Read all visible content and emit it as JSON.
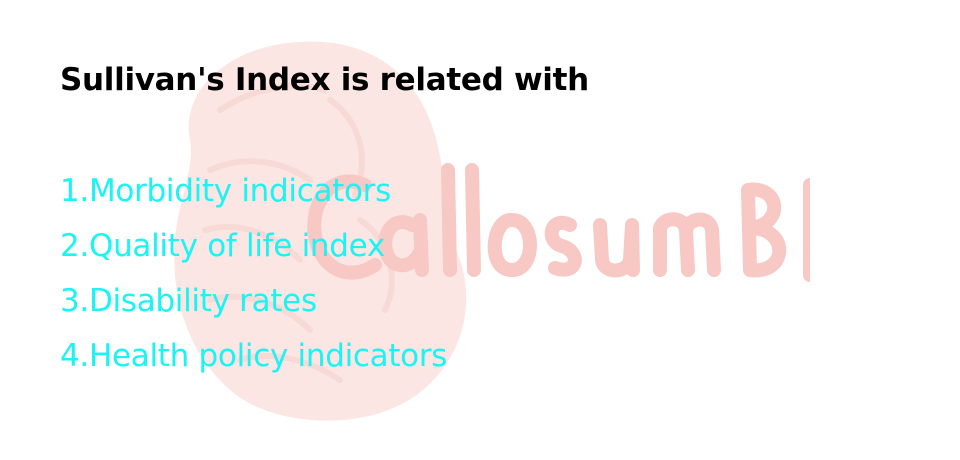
{
  "question": {
    "text": "Sullivan's Index is related with"
  },
  "options": [
    "1.Morbidity indicators",
    "2.Quality of life index",
    "3.Disability rates",
    "4.Health policy indicators"
  ],
  "watermark": {
    "text": "CallosumBD",
    "color": "#e8584a"
  },
  "colors": {
    "question": "#000000",
    "options": "#19f4f4",
    "background": "#ffffff"
  }
}
